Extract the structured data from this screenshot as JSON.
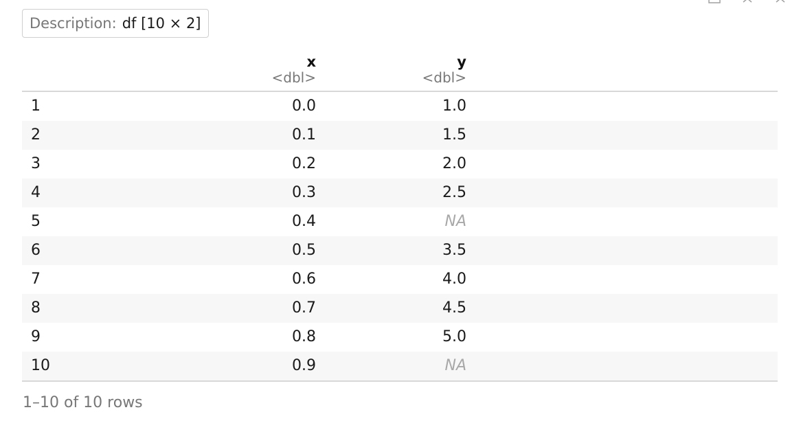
{
  "description": {
    "label": "Description:",
    "value": "df [10 × 2]"
  },
  "columns": [
    {
      "name": "x",
      "type": "<dbl>"
    },
    {
      "name": "y",
      "type": "<dbl>"
    }
  ],
  "rows": [
    {
      "index": "1",
      "x": "0.0",
      "y": "1.0"
    },
    {
      "index": "2",
      "x": "0.1",
      "y": "1.5"
    },
    {
      "index": "3",
      "x": "0.2",
      "y": "2.0"
    },
    {
      "index": "4",
      "x": "0.3",
      "y": "2.5"
    },
    {
      "index": "5",
      "x": "0.4",
      "y": "NA"
    },
    {
      "index": "6",
      "x": "0.5",
      "y": "3.5"
    },
    {
      "index": "7",
      "x": "0.6",
      "y": "4.0"
    },
    {
      "index": "8",
      "x": "0.7",
      "y": "4.5"
    },
    {
      "index": "9",
      "x": "0.8",
      "y": "5.0"
    },
    {
      "index": "10",
      "x": "0.9",
      "y": "NA"
    }
  ],
  "footer": "1–10 of 10 rows",
  "icons": {
    "export": "export-icon",
    "minimize": "minimize-icon",
    "close": "close-icon"
  }
}
